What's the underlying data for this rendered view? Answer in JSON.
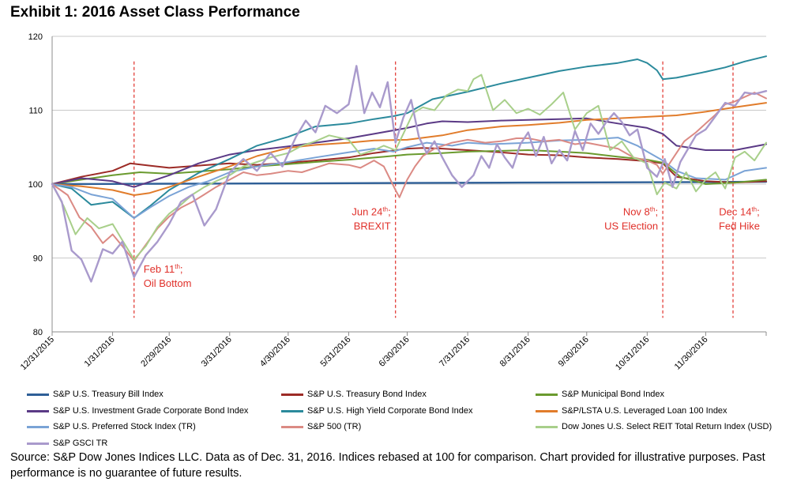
{
  "title": "Exhibit 1: 2016 Asset Class Performance",
  "footer": "Source: S&P Dow Jones Indices LLC.  Data as of Dec. 31, 2016.  Indices rebased at 100 for comparison.  Chart provided for illustrative purposes.  Past performance is no guarantee of future results.",
  "chart_data": {
    "type": "line",
    "title": "Exhibit 1: 2016 Asset Class Performance",
    "xlabel": "",
    "ylabel": "",
    "ylim": [
      80,
      120
    ],
    "yticks": [
      80,
      90,
      100,
      110,
      120
    ],
    "xlim_days": [
      0,
      366
    ],
    "x_tick_labels": [
      "12/31/2015",
      "1/31/2016",
      "2/29/2016",
      "3/31/2016",
      "4/30/2016",
      "5/31/2016",
      "6/30/2016",
      "7/31/2016",
      "8/31/2016",
      "9/30/2016",
      "10/31/2016",
      "11/30/2016"
    ],
    "x_tick_days": [
      0,
      31,
      60,
      91,
      121,
      152,
      182,
      213,
      244,
      274,
      305,
      335
    ],
    "grid": "horizontal",
    "legend_position": "bottom",
    "annotations": [
      {
        "day": 42,
        "label": "Feb 11",
        "sup": "th",
        "suffix": ";",
        "line2": "Oil Bottom",
        "side": "right",
        "y_text": 88
      },
      {
        "day": 176,
        "label": "Jun 24",
        "sup": "th",
        "suffix": ";",
        "line2": "BREXIT",
        "side": "left",
        "y_text": 95.8
      },
      {
        "day": 313,
        "label": "Nov 8",
        "sup": "th",
        "suffix": ";",
        "line2": "US Election",
        "side": "left",
        "y_text": 95.8
      },
      {
        "day": 349,
        "label": "Dec 14",
        "sup": "th",
        "suffix": ";",
        "line2": "Fed Hike",
        "side": "center",
        "y_text": 95.8
      }
    ],
    "annotation_color": "#e0302a",
    "series": [
      {
        "name": "S&P U.S. Treasury Bill Index",
        "color": "#2e5f97",
        "width": 2.4,
        "x": [
          0,
          60,
          120,
          180,
          240,
          300,
          335,
          366
        ],
        "y": [
          100,
          100.05,
          100.1,
          100.15,
          100.2,
          100.25,
          100.28,
          100.32
        ]
      },
      {
        "name": "S&P U.S. Treasury Bond Index",
        "color": "#9c2b26",
        "width": 2,
        "x": [
          0,
          15,
          31,
          40,
          50,
          60,
          75,
          91,
          105,
          121,
          135,
          152,
          165,
          182,
          190,
          200,
          213,
          230,
          244,
          260,
          274,
          290,
          305,
          313,
          320,
          335,
          350,
          366
        ],
        "y": [
          100,
          101,
          101.8,
          102.8,
          102.5,
          102.2,
          102.5,
          102.8,
          102.6,
          102.9,
          103.2,
          103.6,
          104.2,
          104.8,
          104.9,
          104.8,
          104.6,
          104.3,
          104.0,
          103.9,
          103.6,
          103.4,
          103.1,
          102.8,
          101.0,
          100.4,
          100.2,
          100.4
        ]
      },
      {
        "name": "S&P Municipal Bond Index",
        "color": "#6a9a2e",
        "width": 2,
        "x": [
          0,
          15,
          31,
          45,
          60,
          75,
          91,
          105,
          121,
          135,
          152,
          170,
          182,
          200,
          213,
          230,
          244,
          260,
          274,
          290,
          305,
          313,
          322,
          335,
          350,
          366
        ],
        "y": [
          100,
          100.6,
          101.2,
          101.6,
          101.4,
          101.7,
          102.0,
          102.4,
          102.7,
          103.0,
          103.3,
          103.7,
          104.0,
          104.2,
          104.4,
          104.5,
          104.6,
          104.4,
          104.2,
          103.7,
          103.3,
          102.9,
          101.0,
          100.0,
          100.2,
          100.6
        ]
      },
      {
        "name": "S&P U.S. Investment Grade Corporate Bond Index",
        "color": "#5b3a86",
        "width": 2,
        "x": [
          0,
          15,
          31,
          42,
          60,
          75,
          91,
          105,
          121,
          135,
          152,
          165,
          182,
          192,
          200,
          213,
          230,
          244,
          260,
          274,
          290,
          305,
          313,
          320,
          335,
          350,
          366
        ],
        "y": [
          100,
          100.8,
          100.4,
          99.6,
          101.2,
          102.8,
          104.0,
          104.6,
          105.1,
          105.6,
          106.2,
          106.8,
          107.6,
          108.2,
          108.5,
          108.4,
          108.6,
          108.7,
          108.8,
          108.9,
          108.2,
          107.6,
          106.8,
          105.2,
          104.6,
          104.6,
          105.4
        ]
      },
      {
        "name": "S&P U.S. High Yield Corporate Bond Index",
        "color": "#2b8a9c",
        "width": 2,
        "x": [
          0,
          10,
          20,
          31,
          42,
          50,
          60,
          75,
          91,
          105,
          121,
          135,
          152,
          165,
          175,
          182,
          195,
          213,
          230,
          244,
          260,
          274,
          290,
          300,
          305,
          310,
          313,
          320,
          335,
          345,
          355,
          366
        ],
        "y": [
          100,
          99.4,
          97.2,
          97.6,
          95.4,
          97.0,
          99.2,
          101.5,
          103.4,
          105.2,
          106.4,
          107.8,
          108.2,
          108.8,
          109.2,
          109.6,
          111.5,
          112.5,
          113.6,
          114.4,
          115.3,
          115.9,
          116.4,
          116.9,
          116.4,
          115.4,
          114.2,
          114.4,
          115.2,
          115.8,
          116.6,
          117.3
        ]
      },
      {
        "name": "S&P/LSTA U.S. Leveraged Loan 100 Index",
        "color": "#e17c2b",
        "width": 2,
        "x": [
          0,
          15,
          31,
          42,
          50,
          60,
          75,
          91,
          105,
          121,
          135,
          152,
          165,
          182,
          200,
          213,
          230,
          244,
          260,
          274,
          290,
          305,
          320,
          335,
          350,
          366
        ],
        "y": [
          100,
          99.7,
          99.2,
          98.5,
          98.8,
          99.6,
          101.0,
          102.4,
          103.8,
          104.9,
          105.3,
          105.6,
          105.9,
          106.0,
          106.6,
          107.3,
          107.8,
          108.0,
          108.3,
          108.7,
          108.9,
          109.1,
          109.3,
          109.8,
          110.4,
          111.0
        ]
      },
      {
        "name": "S&P U.S. Preferred Stock Index (TR)",
        "color": "#7aa3d6",
        "width": 2,
        "x": [
          0,
          10,
          20,
          31,
          42,
          50,
          60,
          70,
          80,
          91,
          105,
          121,
          135,
          152,
          165,
          175,
          182,
          192,
          205,
          213,
          225,
          244,
          260,
          274,
          290,
          300,
          305,
          313,
          320,
          330,
          345,
          355,
          366
        ],
        "y": [
          100,
          99.6,
          98.6,
          98.0,
          95.4,
          96.8,
          98.4,
          99.6,
          100.4,
          101.6,
          102.4,
          103.0,
          103.6,
          104.3,
          104.8,
          104.4,
          105.0,
          105.6,
          105.2,
          105.6,
          105.4,
          105.6,
          105.9,
          106.0,
          106.3,
          105.2,
          104.4,
          103.2,
          101.8,
          100.8,
          100.6,
          101.8,
          102.2
        ]
      },
      {
        "name": "S&P 500 (TR)",
        "color": "#db8a84",
        "width": 2,
        "x": [
          0,
          8,
          14,
          20,
          26,
          31,
          36,
          42,
          48,
          54,
          60,
          66,
          72,
          78,
          84,
          91,
          98,
          105,
          112,
          121,
          128,
          135,
          142,
          152,
          158,
          165,
          170,
          176,
          178,
          182,
          186,
          190,
          196,
          205,
          213,
          222,
          230,
          238,
          244,
          252,
          260,
          268,
          274,
          282,
          290,
          298,
          305,
          310,
          313,
          318,
          324,
          330,
          335,
          340,
          345,
          350,
          355,
          360,
          366
        ],
        "y": [
          100,
          98.5,
          95.5,
          94.2,
          92.0,
          93.2,
          91.6,
          89.6,
          91.8,
          94.0,
          95.6,
          96.8,
          97.6,
          98.6,
          99.6,
          100.6,
          101.6,
          101.2,
          101.4,
          101.8,
          101.6,
          102.2,
          102.8,
          102.6,
          102.2,
          103.2,
          102.4,
          99.2,
          98.2,
          100.6,
          102.4,
          103.8,
          104.8,
          105.6,
          106.0,
          105.6,
          105.8,
          106.2,
          106.2,
          105.8,
          106.0,
          105.4,
          105.6,
          105.2,
          104.8,
          103.6,
          103.2,
          102.6,
          101.4,
          103.4,
          105.8,
          107.0,
          108.2,
          109.4,
          110.8,
          111.2,
          111.8,
          112.4,
          111.6
        ]
      },
      {
        "name": "Dow Jones U.S. Select REIT Total Return Index (USD)",
        "color": "#a8cf8a",
        "width": 2,
        "x": [
          0,
          6,
          12,
          18,
          24,
          31,
          36,
          42,
          48,
          54,
          60,
          66,
          72,
          78,
          84,
          91,
          98,
          105,
          112,
          121,
          128,
          135,
          142,
          152,
          158,
          165,
          170,
          176,
          180,
          185,
          190,
          196,
          202,
          208,
          213,
          216,
          220,
          226,
          232,
          238,
          244,
          250,
          256,
          262,
          268,
          274,
          280,
          286,
          292,
          298,
          305,
          310,
          314,
          320,
          325,
          330,
          335,
          340,
          345,
          350,
          355,
          360,
          366
        ],
        "y": [
          100,
          97.0,
          93.2,
          95.4,
          94.0,
          94.6,
          92.4,
          89.8,
          91.6,
          94.2,
          96.0,
          97.2,
          98.6,
          99.6,
          100.4,
          101.2,
          102.4,
          103.0,
          103.6,
          104.2,
          105.2,
          105.8,
          106.6,
          106.0,
          104.0,
          104.6,
          105.2,
          104.6,
          106.8,
          109.6,
          110.4,
          110.0,
          112.0,
          112.8,
          112.6,
          114.2,
          114.8,
          110.0,
          111.4,
          109.6,
          110.2,
          109.4,
          110.8,
          112.4,
          107.4,
          109.6,
          110.6,
          104.6,
          105.8,
          103.6,
          102.8,
          98.6,
          100.2,
          99.4,
          101.6,
          99.0,
          100.6,
          101.6,
          99.4,
          103.6,
          104.4,
          103.2,
          105.6
        ]
      },
      {
        "name": "S&P GSCI TR",
        "color": "#a99acc",
        "width": 2.4,
        "x": [
          0,
          5,
          10,
          15,
          20,
          26,
          31,
          36,
          42,
          48,
          54,
          60,
          66,
          72,
          78,
          84,
          91,
          98,
          105,
          112,
          118,
          125,
          130,
          135,
          140,
          146,
          152,
          156,
          160,
          164,
          168,
          172,
          176,
          180,
          184,
          188,
          192,
          196,
          200,
          205,
          210,
          213,
          216,
          220,
          224,
          228,
          232,
          236,
          240,
          244,
          248,
          252,
          256,
          260,
          264,
          268,
          272,
          276,
          280,
          284,
          288,
          292,
          296,
          300,
          305,
          310,
          314,
          318,
          322,
          326,
          330,
          335,
          340,
          345,
          350,
          355,
          360,
          366
        ],
        "y": [
          100,
          97.6,
          91.0,
          89.8,
          86.8,
          91.2,
          90.6,
          92.2,
          87.4,
          90.4,
          92.2,
          94.6,
          97.6,
          98.6,
          94.4,
          96.6,
          101.6,
          103.4,
          101.8,
          104.2,
          102.4,
          106.4,
          108.6,
          107.0,
          110.6,
          109.6,
          110.8,
          116.0,
          109.6,
          112.4,
          110.4,
          113.8,
          105.6,
          109.0,
          111.4,
          106.4,
          104.2,
          105.8,
          103.6,
          101.2,
          99.6,
          100.4,
          101.2,
          103.8,
          102.2,
          105.4,
          103.6,
          102.2,
          105.4,
          107.0,
          103.8,
          106.4,
          102.8,
          104.6,
          103.2,
          107.2,
          104.6,
          108.2,
          106.8,
          108.4,
          109.6,
          108.4,
          106.6,
          107.4,
          102.2,
          101.0,
          103.4,
          99.6,
          103.0,
          104.8,
          106.6,
          107.4,
          109.2,
          111.0,
          110.6,
          112.4,
          112.2,
          112.6
        ]
      }
    ]
  }
}
